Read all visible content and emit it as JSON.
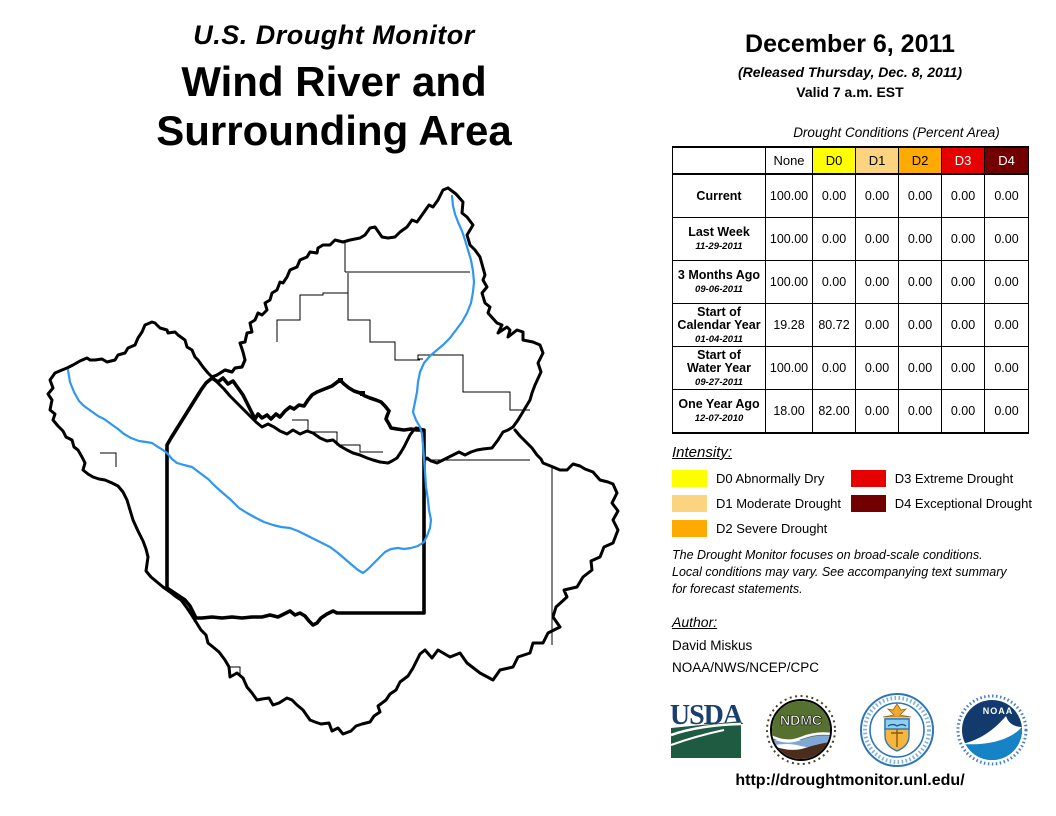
{
  "title_block": {
    "program": "U.S. Drought Monitor",
    "area_line1": "Wind River and",
    "area_line2": "Surrounding Area"
  },
  "date_block": {
    "date": "December 6, 2011",
    "released": "(Released Thursday, Dec. 8, 2011)",
    "valid": "Valid 7 a.m. EST"
  },
  "table": {
    "title": "Drought Conditions (Percent Area)",
    "columns": [
      {
        "label": "None",
        "bg": "#FFFFFF",
        "fg": "#000000"
      },
      {
        "label": "D0",
        "bg": "#FFFF00",
        "fg": "#000000"
      },
      {
        "label": "D1",
        "bg": "#FCD37F",
        "fg": "#000000"
      },
      {
        "label": "D2",
        "bg": "#FFAA00",
        "fg": "#000000"
      },
      {
        "label": "D3",
        "bg": "#E60000",
        "fg": "#FFFFFF"
      },
      {
        "label": "D4",
        "bg": "#730000",
        "fg": "#FFFFFF"
      }
    ],
    "rows": [
      {
        "label": "Current",
        "date": "",
        "values": [
          "100.00",
          "0.00",
          "0.00",
          "0.00",
          "0.00",
          "0.00"
        ]
      },
      {
        "label": "Last Week",
        "date": "11-29-2011",
        "values": [
          "100.00",
          "0.00",
          "0.00",
          "0.00",
          "0.00",
          "0.00"
        ]
      },
      {
        "label": "3 Months Ago",
        "date": "09-06-2011",
        "values": [
          "100.00",
          "0.00",
          "0.00",
          "0.00",
          "0.00",
          "0.00"
        ]
      },
      {
        "label": "Start of\nCalendar Year",
        "date": "01-04-2011",
        "values": [
          "19.28",
          "80.72",
          "0.00",
          "0.00",
          "0.00",
          "0.00"
        ]
      },
      {
        "label": "Start of\nWater Year",
        "date": "09-27-2011",
        "values": [
          "100.00",
          "0.00",
          "0.00",
          "0.00",
          "0.00",
          "0.00"
        ]
      },
      {
        "label": "One Year Ago",
        "date": "12-07-2010",
        "values": [
          "18.00",
          "82.00",
          "0.00",
          "0.00",
          "0.00",
          "0.00"
        ]
      }
    ]
  },
  "legend": {
    "heading": "Intensity:",
    "left_items": [
      {
        "label": "D0 Abnormally Dry",
        "color": "#FFFF00"
      },
      {
        "label": "D1 Moderate Drought",
        "color": "#FCD37F"
      },
      {
        "label": "D2 Severe Drought",
        "color": "#FFAA00"
      }
    ],
    "right_items": [
      {
        "label": "D3 Extreme Drought",
        "color": "#E60000"
      },
      {
        "label": "D4 Exceptional Drought",
        "color": "#730000"
      }
    ]
  },
  "notes": {
    "text": "The Drought Monitor focuses on broad-scale conditions.\nLocal conditions may vary. See accompanying text summary\nfor forecast statements."
  },
  "author": {
    "heading": "Author:",
    "name": "David Miskus",
    "org": "NOAA/NWS/NCEP/CPC"
  },
  "logos": {
    "usda_text": "USDA",
    "ndmc_text": "NDMC",
    "noaa_text": "NOAA"
  },
  "footer": {
    "url": "http://droughtmonitor.unl.edu/"
  },
  "map_colors": {
    "boundary": "#000000",
    "river": "#2F97F0"
  }
}
